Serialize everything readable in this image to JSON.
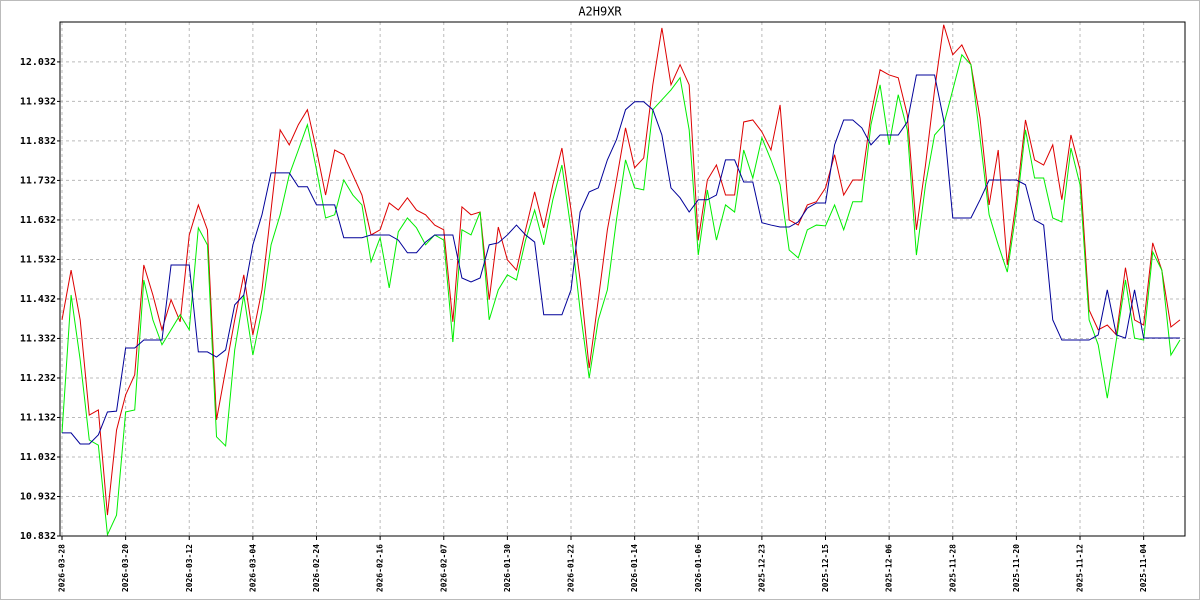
{
  "chart_data": {
    "type": "line",
    "title": "A2H9XR",
    "categories": [
      "2026-03-28",
      null,
      null,
      null,
      null,
      null,
      null,
      "2026-03-20",
      null,
      null,
      null,
      null,
      null,
      null,
      "2026-03-12",
      null,
      null,
      null,
      null,
      null,
      null,
      "2026-03-04",
      null,
      null,
      null,
      null,
      null,
      null,
      "2026-02-24",
      null,
      null,
      null,
      null,
      null,
      null,
      "2026-02-16",
      null,
      null,
      null,
      null,
      null,
      null,
      "2026-02-07",
      null,
      null,
      null,
      null,
      null,
      null,
      "2026-01-30",
      null,
      null,
      null,
      null,
      null,
      null,
      "2026-01-22",
      null,
      null,
      null,
      null,
      null,
      null,
      "2026-01-14",
      null,
      null,
      null,
      null,
      null,
      null,
      "2026-01-06",
      null,
      null,
      null,
      null,
      null,
      null,
      "2025-12-23",
      null,
      null,
      null,
      null,
      null,
      null,
      "2025-12-15",
      null,
      null,
      null,
      null,
      null,
      null,
      "2025-12-06",
      null,
      null,
      null,
      null,
      null,
      null,
      "2025-11-28",
      null,
      null,
      null,
      null,
      null,
      null,
      "2025-11-20",
      null,
      null,
      null,
      null,
      null,
      null,
      "2025-11-12",
      null,
      null,
      null,
      null,
      null,
      null,
      "2025-11-04",
      null,
      null,
      null,
      null
    ],
    "series": [
      {
        "color": "#dd0000",
        "values": [
          11.379,
          11.505,
          11.379,
          11.138,
          11.151,
          10.885,
          11.1,
          11.189,
          11.24,
          11.518,
          11.442,
          11.354,
          11.43,
          11.374,
          11.594,
          11.67,
          11.607,
          11.126,
          11.252,
          11.379,
          11.493,
          11.341,
          11.455,
          11.657,
          11.86,
          11.822,
          11.873,
          11.911,
          11.809,
          11.695,
          11.809,
          11.797,
          11.746,
          11.695,
          11.594,
          11.607,
          11.675,
          11.657,
          11.688,
          11.657,
          11.645,
          11.619,
          11.607,
          11.374,
          11.665,
          11.645,
          11.652,
          11.43,
          11.614,
          11.531,
          11.505,
          11.607,
          11.703,
          11.612,
          11.721,
          11.814,
          11.657,
          11.48,
          11.257,
          11.43,
          11.607,
          11.733,
          11.865,
          11.764,
          11.789,
          11.974,
          12.118,
          11.974,
          12.025,
          11.974,
          11.581,
          11.733,
          11.771,
          11.695,
          11.695,
          11.88,
          11.885,
          11.855,
          11.809,
          11.923,
          11.632,
          11.619,
          11.67,
          11.678,
          11.713,
          11.797,
          11.695,
          11.733,
          11.733,
          11.898,
          12.012,
          11.999,
          11.992,
          11.898,
          11.607,
          11.771,
          11.961,
          12.126,
          12.05,
          12.075,
          12.025,
          11.89,
          11.67,
          11.809,
          11.518,
          11.683,
          11.885,
          11.784,
          11.771,
          11.822,
          11.683,
          11.847,
          11.759,
          11.404,
          11.354,
          11.366,
          11.341,
          11.511,
          11.379,
          11.366,
          11.574,
          11.505,
          11.361,
          11.379
        ]
      },
      {
        "color": "#00ee00",
        "values": [
          11.093,
          11.442,
          11.278,
          11.075,
          11.062,
          10.835,
          10.885,
          11.146,
          11.151,
          11.48,
          11.379,
          11.316,
          11.354,
          11.392,
          11.354,
          11.612,
          11.569,
          11.083,
          11.06,
          11.303,
          11.442,
          11.29,
          11.404,
          11.569,
          11.645,
          11.746,
          11.809,
          11.873,
          11.759,
          11.637,
          11.645,
          11.733,
          11.695,
          11.67,
          11.526,
          11.587,
          11.46,
          11.602,
          11.637,
          11.612,
          11.569,
          11.594,
          11.581,
          11.323,
          11.607,
          11.594,
          11.652,
          11.379,
          11.455,
          11.493,
          11.48,
          11.581,
          11.657,
          11.569,
          11.683,
          11.771,
          11.607,
          11.404,
          11.232,
          11.379,
          11.455,
          11.632,
          11.784,
          11.713,
          11.708,
          11.911,
          11.936,
          11.961,
          11.992,
          11.86,
          11.543,
          11.708,
          11.581,
          11.67,
          11.652,
          11.809,
          11.738,
          11.84,
          11.784,
          11.721,
          11.556,
          11.536,
          11.607,
          11.619,
          11.617,
          11.67,
          11.607,
          11.678,
          11.678,
          11.873,
          11.974,
          11.822,
          11.949,
          11.86,
          11.543,
          11.721,
          11.847,
          11.873,
          11.961,
          12.05,
          12.025,
          11.84,
          11.645,
          11.569,
          11.5,
          11.657,
          11.86,
          11.738,
          11.738,
          11.637,
          11.627,
          11.814,
          11.721,
          11.379,
          11.316,
          11.181,
          11.328,
          11.48,
          11.333,
          11.328,
          11.551,
          11.505,
          11.29,
          11.328
        ]
      },
      {
        "color": "#000099",
        "values": [
          11.093,
          11.093,
          11.065,
          11.065,
          11.088,
          11.146,
          11.148,
          11.308,
          11.308,
          11.328,
          11.328,
          11.328,
          11.518,
          11.518,
          11.518,
          11.298,
          11.298,
          11.285,
          11.303,
          11.417,
          11.442,
          11.569,
          11.645,
          11.751,
          11.751,
          11.751,
          11.716,
          11.716,
          11.67,
          11.67,
          11.67,
          11.587,
          11.587,
          11.587,
          11.594,
          11.594,
          11.594,
          11.581,
          11.549,
          11.549,
          11.576,
          11.594,
          11.594,
          11.594,
          11.485,
          11.475,
          11.485,
          11.569,
          11.574,
          11.594,
          11.619,
          11.594,
          11.576,
          11.392,
          11.392,
          11.392,
          11.455,
          11.652,
          11.703,
          11.713,
          11.784,
          11.835,
          11.911,
          11.931,
          11.931,
          11.911,
          11.847,
          11.713,
          11.688,
          11.652,
          11.683,
          11.683,
          11.695,
          11.784,
          11.784,
          11.728,
          11.728,
          11.625,
          11.619,
          11.614,
          11.614,
          11.627,
          11.662,
          11.675,
          11.675,
          11.822,
          11.885,
          11.885,
          11.865,
          11.822,
          11.847,
          11.847,
          11.847,
          11.88,
          11.999,
          11.999,
          11.999,
          11.885,
          11.637,
          11.637,
          11.637,
          11.683,
          11.733,
          11.733,
          11.733,
          11.733,
          11.721,
          11.632,
          11.619,
          11.379,
          11.328,
          11.328,
          11.328,
          11.328,
          11.341,
          11.455,
          11.341,
          11.333,
          11.455,
          11.333,
          11.333,
          11.333,
          11.333,
          11.333
        ]
      }
    ],
    "ylim": [
      10.832,
      12.133
    ],
    "yticks": [
      10.832,
      10.932,
      11.032,
      11.132,
      11.232,
      11.332,
      11.432,
      11.532,
      11.632,
      11.732,
      11.832,
      11.932,
      12.032
    ],
    "grid": true
  }
}
